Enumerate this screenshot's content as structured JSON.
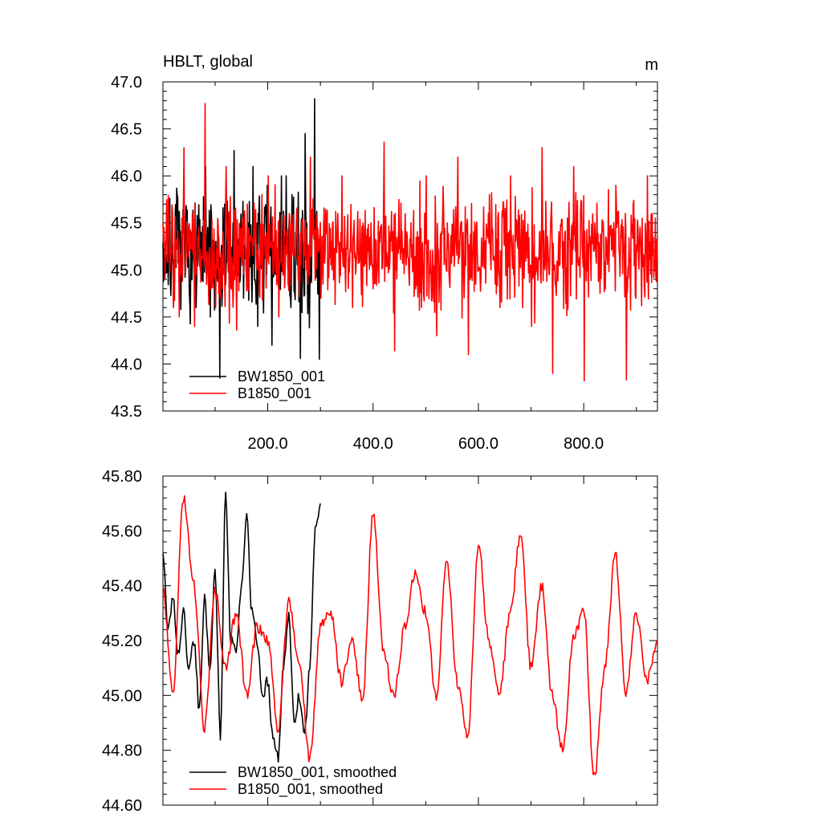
{
  "chart_data": [
    {
      "type": "line",
      "title": "HBLT, global",
      "units": "m",
      "xlim": [
        1,
        940
      ],
      "ylim": [
        43.5,
        47.0
      ],
      "xticks": [
        200,
        400,
        600,
        800
      ],
      "xtick_labels": [
        "200.0",
        "400.0",
        "600.0",
        "800.0"
      ],
      "yticks": [
        43.5,
        44.0,
        44.5,
        45.0,
        45.5,
        46.0,
        46.5,
        47.0
      ],
      "ytick_labels": [
        "43.5",
        "44.0",
        "44.5",
        "45.0",
        "45.5",
        "46.0",
        "46.5",
        "47.0"
      ],
      "legend_position": "bottom-left",
      "series": [
        {
          "name": "BW1850_001",
          "color": "#000000",
          "x_start": 1,
          "x_end": 300,
          "mean": 45.15,
          "amplitude": 0.55,
          "min": 43.85,
          "max": 46.82,
          "values": [
            45.3,
            45.1,
            45.8,
            44.9,
            45.6,
            45.0,
            44.6,
            45.4,
            46.1,
            44.5,
            45.2,
            43.85,
            45.7,
            44.8,
            46.27,
            45.1,
            44.7,
            45.5,
            46.1,
            44.4,
            45.3,
            45.9,
            44.2,
            45.0,
            46.0,
            44.6,
            45.4,
            44.06,
            46.45,
            44.8,
            46.82,
            44.05
          ]
        },
        {
          "name": "B1850_001",
          "color": "#ff0000",
          "x_start": 1,
          "x_end": 940,
          "mean": 45.2,
          "amplitude": 0.5,
          "min": 43.82,
          "max": 46.77,
          "values": [
            45.5,
            44.6,
            46.3,
            44.4,
            46.77,
            44.6,
            46.1,
            44.36,
            45.7,
            45.0,
            46.0,
            44.5,
            45.6,
            44.9,
            46.2,
            44.7,
            45.3,
            46.0,
            44.6,
            45.5,
            45.1,
            46.36,
            44.14,
            45.6,
            44.8,
            46.0,
            44.3,
            45.5,
            46.2,
            44.1,
            45.0,
            45.8,
            44.6,
            46.0,
            45.2,
            44.4,
            46.3,
            43.9,
            45.3,
            46.1,
            43.82,
            45.5,
            44.8,
            45.9,
            43.83,
            45.2,
            46.0,
            44.5
          ]
        }
      ]
    },
    {
      "type": "line",
      "title": "",
      "xlim": [
        1,
        940
      ],
      "ylim": [
        44.6,
        45.8
      ],
      "yticks": [
        44.6,
        44.8,
        45.0,
        45.2,
        45.4,
        45.6,
        45.8
      ],
      "ytick_labels": [
        "44.60",
        "44.80",
        "45.00",
        "45.20",
        "45.40",
        "45.60",
        "45.80"
      ],
      "legend_position": "bottom-left",
      "series": [
        {
          "name": "BW1850_001, smoothed",
          "color": "#000000",
          "x": [
            1,
            10,
            20,
            30,
            40,
            50,
            60,
            70,
            80,
            90,
            100,
            110,
            120,
            130,
            140,
            150,
            160,
            170,
            180,
            190,
            200,
            210,
            220,
            230,
            240,
            250,
            260,
            270,
            280,
            290,
            300
          ],
          "values": [
            45.52,
            45.25,
            45.35,
            45.15,
            45.3,
            45.1,
            45.2,
            44.95,
            45.35,
            45.1,
            45.45,
            44.85,
            45.74,
            45.2,
            45.15,
            45.4,
            45.65,
            45.3,
            45.2,
            45.0,
            45.05,
            44.85,
            44.78,
            45.1,
            45.3,
            44.9,
            45.0,
            44.86,
            45.1,
            45.6,
            45.7
          ]
        },
        {
          "name": "B1850_001, smoothed",
          "color": "#ff0000",
          "x": [
            1,
            20,
            40,
            60,
            80,
            100,
            120,
            140,
            160,
            180,
            200,
            220,
            240,
            260,
            280,
            300,
            320,
            340,
            360,
            380,
            400,
            420,
            440,
            460,
            480,
            500,
            520,
            540,
            560,
            580,
            600,
            620,
            640,
            660,
            680,
            700,
            720,
            740,
            760,
            780,
            800,
            820,
            840,
            860,
            880,
            900,
            920,
            940
          ],
          "values": [
            45.38,
            45.0,
            45.72,
            45.4,
            44.88,
            45.38,
            45.1,
            45.3,
            45.0,
            45.25,
            45.2,
            44.88,
            45.35,
            45.1,
            44.77,
            45.25,
            45.3,
            45.05,
            45.2,
            44.98,
            45.67,
            45.15,
            45.0,
            45.25,
            45.45,
            45.3,
            45.0,
            45.5,
            45.05,
            44.85,
            45.55,
            45.2,
            45.0,
            45.3,
            45.58,
            45.1,
            45.4,
            45.0,
            44.8,
            45.2,
            45.32,
            44.7,
            45.1,
            45.52,
            45.0,
            45.3,
            45.05,
            45.2
          ]
        }
      ]
    }
  ]
}
